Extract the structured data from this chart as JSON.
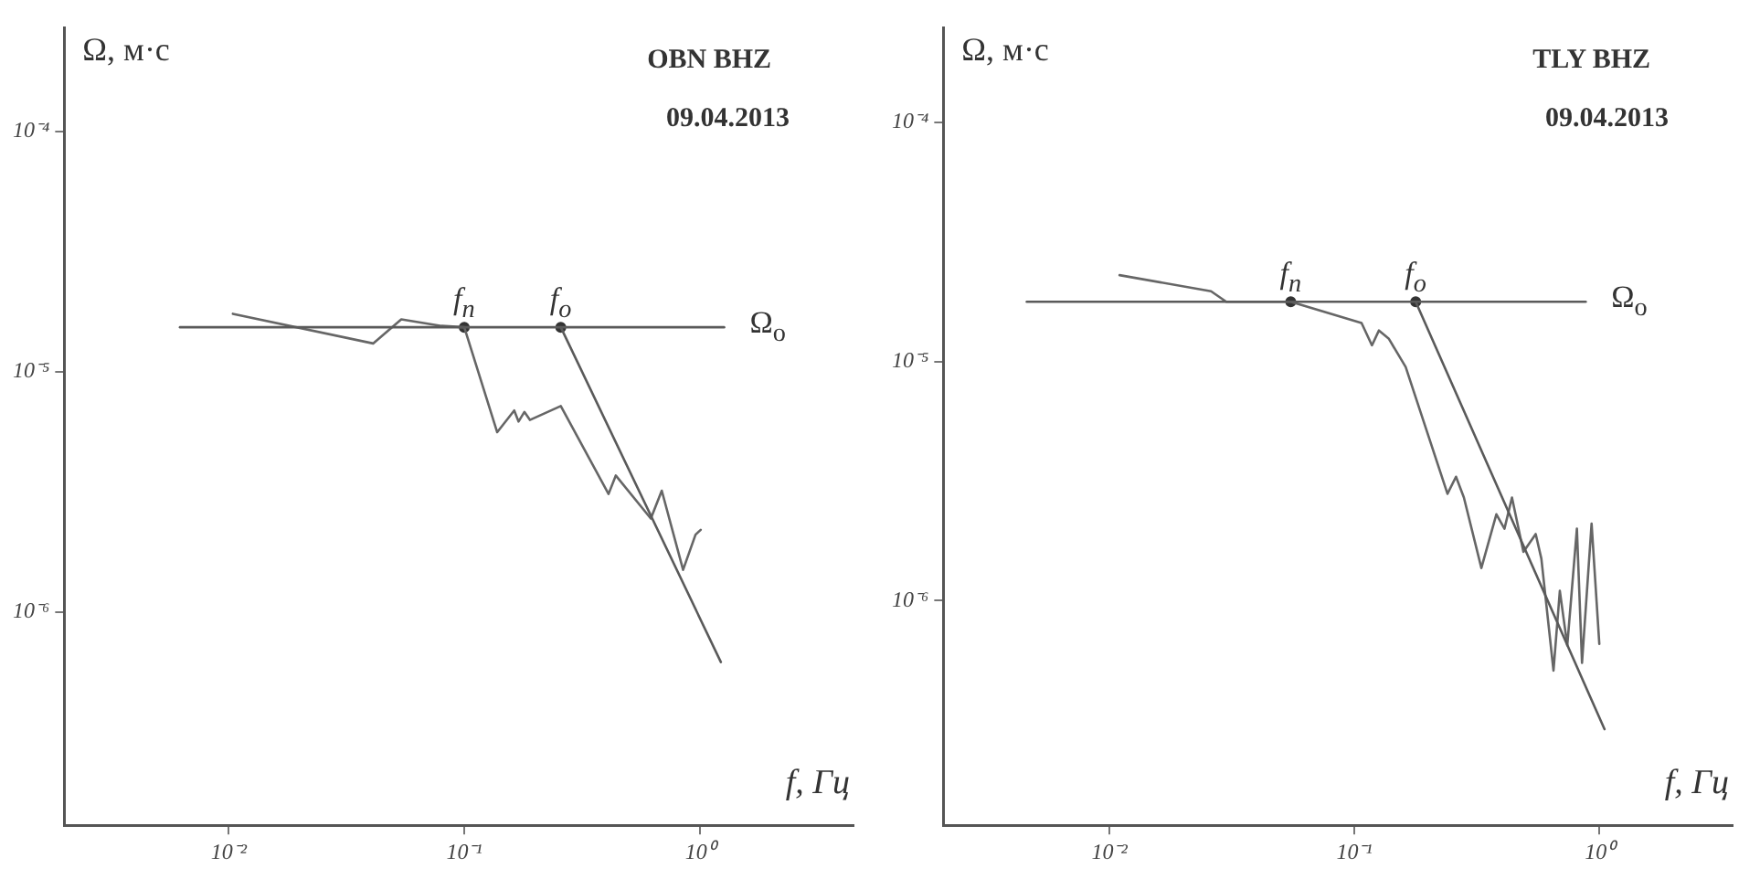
{
  "chart_data": [
    {
      "type": "line",
      "title": "OBN BHZ",
      "subtitle": "09.04.2013",
      "xlabel": "f, Гц",
      "ylabel": "Ω, м·с",
      "log": "xy",
      "grid": false,
      "xlim": [
        0.002,
        4.5
      ],
      "ylim": [
        1.3e-07,
        0.00027
      ],
      "xticks": [
        {
          "value": 0.01,
          "label": "10⁻²"
        },
        {
          "value": 0.1,
          "label": "10⁻¹"
        },
        {
          "value": 1,
          "label": "10⁰"
        }
      ],
      "yticks": [
        {
          "value": 1e-06,
          "label": "10⁻⁶"
        },
        {
          "value": 1e-05,
          "label": "10⁻⁵"
        },
        {
          "value": 0.0001,
          "label": "10⁻⁴"
        }
      ],
      "series": [
        {
          "type": "line",
          "name": "Ω$_{o}$",
          "color": "#5a5a5a",
          "x": [
            0.0062,
            1.27
          ],
          "values": [
            1.53e-05,
            1.53e-05
          ]
        },
        {
          "type": "line",
          "color": "#5a5a5a",
          "x": [
            0.257,
            1.23
          ],
          "values": [
            1.53e-05,
            6.2e-07
          ]
        },
        {
          "type": "line",
          "color": "#666666",
          "x": [
            0.0104,
            0.041,
            0.054,
            0.08,
            0.1,
            0.138,
            0.163,
            0.17,
            0.18,
            0.19,
            0.257,
            0.41,
            0.44,
            0.62,
            0.69,
            0.85,
            0.96,
            1.01
          ],
          "values": [
            1.74e-05,
            1.31e-05,
            1.65e-05,
            1.55e-05,
            1.53e-05,
            5.6e-06,
            6.9e-06,
            6.2e-06,
            6.8e-06,
            6.3e-06,
            7.2e-06,
            3.1e-06,
            3.7e-06,
            2.45e-06,
            3.2e-06,
            1.5e-06,
            2.1e-06,
            2.2e-06
          ]
        },
        {
          "type": "scatter",
          "marker": "circle",
          "color": "#333333",
          "x": [
            0.1,
            0.257
          ],
          "values": [
            1.53e-05,
            1.53e-05
          ]
        }
      ],
      "annotations": [
        {
          "text": "f$_{n}$",
          "x": 0.1,
          "y": 1.53e-05
        },
        {
          "text": "f$_{o}$",
          "x": 0.257,
          "y": 1.53e-05
        }
      ]
    },
    {
      "type": "line",
      "title": "TLY BHZ",
      "subtitle": "09.04.2013",
      "xlabel": "f, Гц",
      "ylabel": "Ω, м·с",
      "log": "xy",
      "grid": false,
      "xlim": [
        0.0021,
        3.5
      ],
      "ylim": [
        1.15e-07,
        0.00025
      ],
      "xticks": [
        {
          "value": 0.01,
          "label": "10⁻²"
        },
        {
          "value": 0.1,
          "label": "10⁻¹"
        },
        {
          "value": 1,
          "label": "10⁰"
        }
      ],
      "yticks": [
        {
          "value": 1e-06,
          "label": "10⁻⁶"
        },
        {
          "value": 1e-05,
          "label": "10⁻⁵"
        },
        {
          "value": 0.0001,
          "label": "10⁻⁴"
        }
      ],
      "series": [
        {
          "type": "line",
          "name": "Ω$_{o}$",
          "color": "#5a5a5a",
          "x": [
            0.0046,
            0.88
          ],
          "values": [
            1.78e-05,
            1.78e-05
          ]
        },
        {
          "type": "line",
          "color": "#5a5a5a",
          "x": [
            0.178,
            1.05
          ],
          "values": [
            1.78e-05,
            2.9e-07
          ]
        },
        {
          "type": "line",
          "color": "#666666",
          "x": [
            0.011,
            0.026,
            0.03,
            0.055,
            0.107,
            0.118,
            0.126,
            0.138,
            0.162,
            0.24,
            0.26,
            0.28,
            0.33,
            0.38,
            0.41,
            0.44,
            0.49,
            0.55,
            0.58,
            0.65,
            0.69,
            0.74,
            0.81,
            0.85,
            0.93,
            1.0
          ],
          "values": [
            2.3e-05,
            1.97e-05,
            1.78e-05,
            1.78e-05,
            1.45e-05,
            1.17e-05,
            1.35e-05,
            1.25e-05,
            9.5e-06,
            2.8e-06,
            3.3e-06,
            2.7e-06,
            1.37e-06,
            2.3e-06,
            2e-06,
            2.7e-06,
            1.6e-06,
            1.9e-06,
            1.5e-06,
            5.1e-07,
            1.1e-06,
            6.5e-07,
            2e-06,
            5.5e-07,
            2.1e-06,
            6.6e-07
          ]
        },
        {
          "type": "scatter",
          "marker": "circle",
          "color": "#333333",
          "x": [
            0.055,
            0.178
          ],
          "values": [
            1.78e-05,
            1.78e-05
          ]
        }
      ],
      "annotations": [
        {
          "text": "f$_{n}$",
          "x": 0.055,
          "y": 1.78e-05
        },
        {
          "text": "f$_{o}$",
          "x": 0.178,
          "y": 1.78e-05
        }
      ]
    }
  ]
}
